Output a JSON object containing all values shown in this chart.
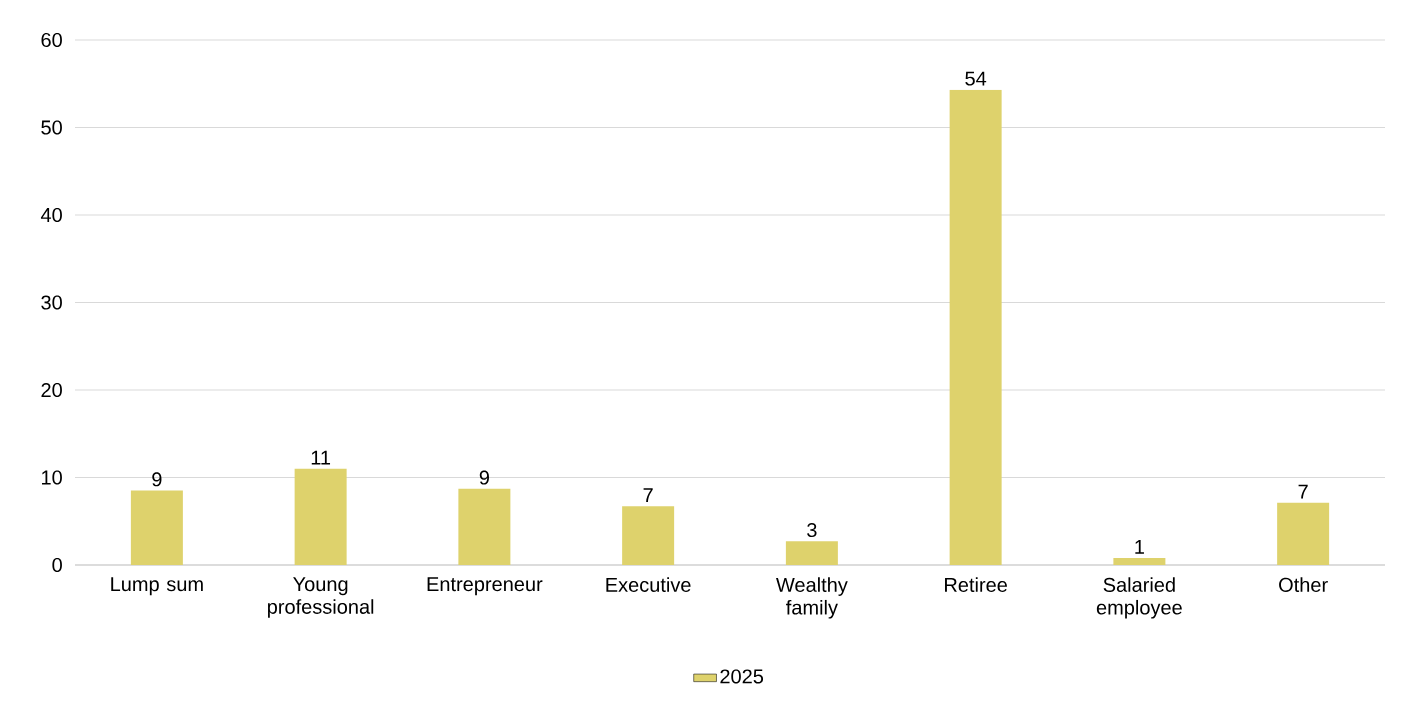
{
  "chart_data": {
    "type": "bar",
    "categories": [
      "Lump sum",
      "Young professional",
      "Entrepreneur",
      "Executive",
      "Wealthy family",
      "Retiree",
      "Salaried employee",
      "Other"
    ],
    "series": [
      {
        "name": "2025",
        "color": "#ded26c",
        "values": [
          8.5,
          11,
          8.7,
          6.7,
          2.7,
          54.3,
          0.8,
          7.1
        ],
        "value_labels": [
          "9",
          "11",
          "9",
          "7",
          "3",
          "54",
          "1",
          "7"
        ]
      }
    ],
    "ylim": [
      0,
      60
    ],
    "yticks": [
      0,
      10,
      20,
      30,
      40,
      50,
      60
    ],
    "grid": "y",
    "legend": "bottom"
  }
}
